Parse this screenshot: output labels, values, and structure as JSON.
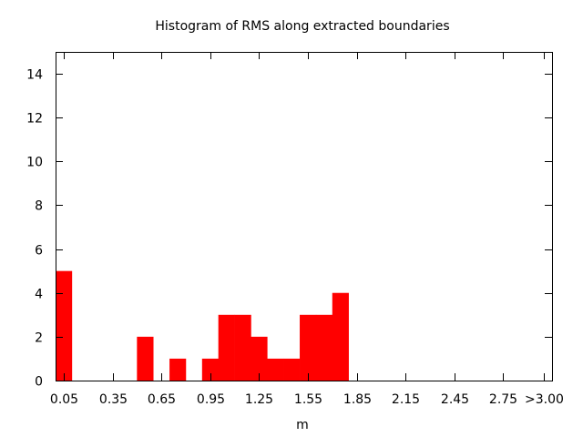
{
  "chart_data": {
    "type": "bar",
    "title": "Histogram of RMS along extracted boundaries",
    "xlabel": "m",
    "ylabel": "",
    "ylim": [
      0,
      15
    ],
    "yticks": [
      "0",
      "2",
      "4",
      "6",
      "8",
      "10",
      "12",
      "14"
    ],
    "xtick_labels": [
      "0.05",
      "0.35",
      "0.65",
      "0.95",
      "1.25",
      "1.55",
      "1.85",
      "2.15",
      "2.45",
      "2.75",
      ">3.00"
    ],
    "xtick_values": [
      0.05,
      0.35,
      0.65,
      0.95,
      1.25,
      1.55,
      1.85,
      2.15,
      2.45,
      2.75,
      3.0
    ],
    "xlim": [
      0.0,
      3.05
    ],
    "bin_width": 0.1,
    "bar_color": "#ff0000",
    "grid": false,
    "bins": [
      {
        "center": 0.05,
        "value": 5
      },
      {
        "center": 0.55,
        "value": 2
      },
      {
        "center": 0.75,
        "value": 1
      },
      {
        "center": 0.95,
        "value": 1
      },
      {
        "center": 1.05,
        "value": 3
      },
      {
        "center": 1.15,
        "value": 3
      },
      {
        "center": 1.25,
        "value": 2
      },
      {
        "center": 1.35,
        "value": 1
      },
      {
        "center": 1.45,
        "value": 1
      },
      {
        "center": 1.55,
        "value": 3
      },
      {
        "center": 1.65,
        "value": 3
      },
      {
        "center": 1.75,
        "value": 4
      }
    ]
  }
}
